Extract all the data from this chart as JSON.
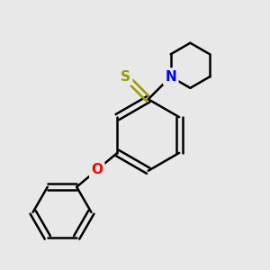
{
  "bg_color": "#e8e8e8",
  "bond_color": "#000000",
  "bond_width": 1.8,
  "atom_colors": {
    "S": "#999900",
    "N": "#0000ff",
    "O": "#ff0000",
    "C": "#000000"
  },
  "font_size": 11,
  "figsize": [
    3.0,
    3.0
  ],
  "dpi": 100,
  "xlim": [
    0,
    10
  ],
  "ylim": [
    0,
    10
  ]
}
